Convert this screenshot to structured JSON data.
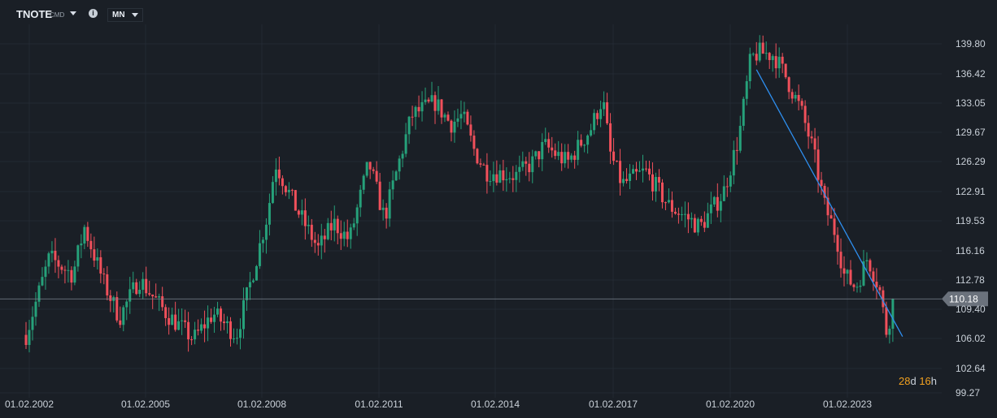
{
  "toolbar": {
    "symbol": "TNOTE",
    "symbol_suffix": "CMD",
    "interval": "MN"
  },
  "countdown": {
    "days_value": "28",
    "days_unit": "d",
    "hours_value": "16",
    "hours_unit": "h"
  },
  "colors": {
    "background": "#1a1f26",
    "up": "#26a17a",
    "down": "#f0505b",
    "trendline": "#2e8ff0",
    "grid": "#232a33",
    "price_line": "#7c8590",
    "countdown": "#f0a020"
  },
  "chart_data": {
    "type": "candlestick",
    "interval": "monthly",
    "grid": true,
    "y_axis": {
      "position": "right",
      "ylim": [
        99.27,
        141.0
      ],
      "ticks": [
        "139.80",
        "136.42",
        "133.05",
        "129.67",
        "126.29",
        "122.91",
        "119.53",
        "116.16",
        "112.78",
        "109.40",
        "106.02",
        "102.64",
        "99.27"
      ]
    },
    "x_axis": {
      "ticks": [
        "01.02.2002",
        "01.02.2005",
        "01.02.2008",
        "01.02.2011",
        "01.02.2014",
        "01.02.2017",
        "01.02.2020",
        "01.02.2023"
      ]
    },
    "last_price": "110.18",
    "x_range_years": [
      2002.0,
      2024.25
    ],
    "anchors": [
      [
        2002.0,
        106.0
      ],
      [
        2002.6,
        115.0
      ],
      [
        2003.2,
        113.0
      ],
      [
        2003.5,
        118.5
      ],
      [
        2004.0,
        112.0
      ],
      [
        2004.4,
        108.0
      ],
      [
        2004.9,
        112.5
      ],
      [
        2005.6,
        108.5
      ],
      [
        2006.3,
        105.5
      ],
      [
        2006.8,
        108.5
      ],
      [
        2007.4,
        106.0
      ],
      [
        2007.7,
        111.0
      ],
      [
        2008.2,
        120.0
      ],
      [
        2008.4,
        126.0
      ],
      [
        2008.9,
        121.0
      ],
      [
        2009.5,
        116.0
      ],
      [
        2009.9,
        119.0
      ],
      [
        2010.3,
        117.0
      ],
      [
        2010.8,
        126.0
      ],
      [
        2011.2,
        119.5
      ],
      [
        2011.6,
        126.5
      ],
      [
        2011.9,
        131.5
      ],
      [
        2012.5,
        133.0
      ],
      [
        2012.9,
        130.5
      ],
      [
        2013.2,
        131.5
      ],
      [
        2013.5,
        127.5
      ],
      [
        2013.8,
        125.0
      ],
      [
        2014.6,
        124.5
      ],
      [
        2015.0,
        126.0
      ],
      [
        2015.3,
        128.0
      ],
      [
        2015.9,
        126.0
      ],
      [
        2016.5,
        130.0
      ],
      [
        2016.8,
        133.5
      ],
      [
        2017.0,
        127.0
      ],
      [
        2017.3,
        123.5
      ],
      [
        2017.9,
        125.0
      ],
      [
        2018.5,
        121.0
      ],
      [
        2019.0,
        119.5
      ],
      [
        2019.3,
        118.5
      ],
      [
        2019.9,
        122.5
      ],
      [
        2020.3,
        129.0
      ],
      [
        2020.6,
        138.0
      ],
      [
        2020.8,
        138.8
      ],
      [
        2021.2,
        138.5
      ],
      [
        2021.5,
        136.0
      ],
      [
        2021.9,
        132.0
      ],
      [
        2022.2,
        127.5
      ],
      [
        2022.5,
        121.0
      ],
      [
        2022.8,
        117.5
      ],
      [
        2023.0,
        113.0
      ],
      [
        2023.3,
        111.5
      ],
      [
        2023.6,
        115.0
      ],
      [
        2023.9,
        111.5
      ],
      [
        2024.1,
        106.0
      ],
      [
        2024.25,
        110.2
      ]
    ],
    "trendline": {
      "from": {
        "x_year": 2020.75,
        "y": 136.8
      },
      "to": {
        "x_year": 2024.5,
        "y": 105.8
      }
    },
    "volatility": 1.8
  }
}
